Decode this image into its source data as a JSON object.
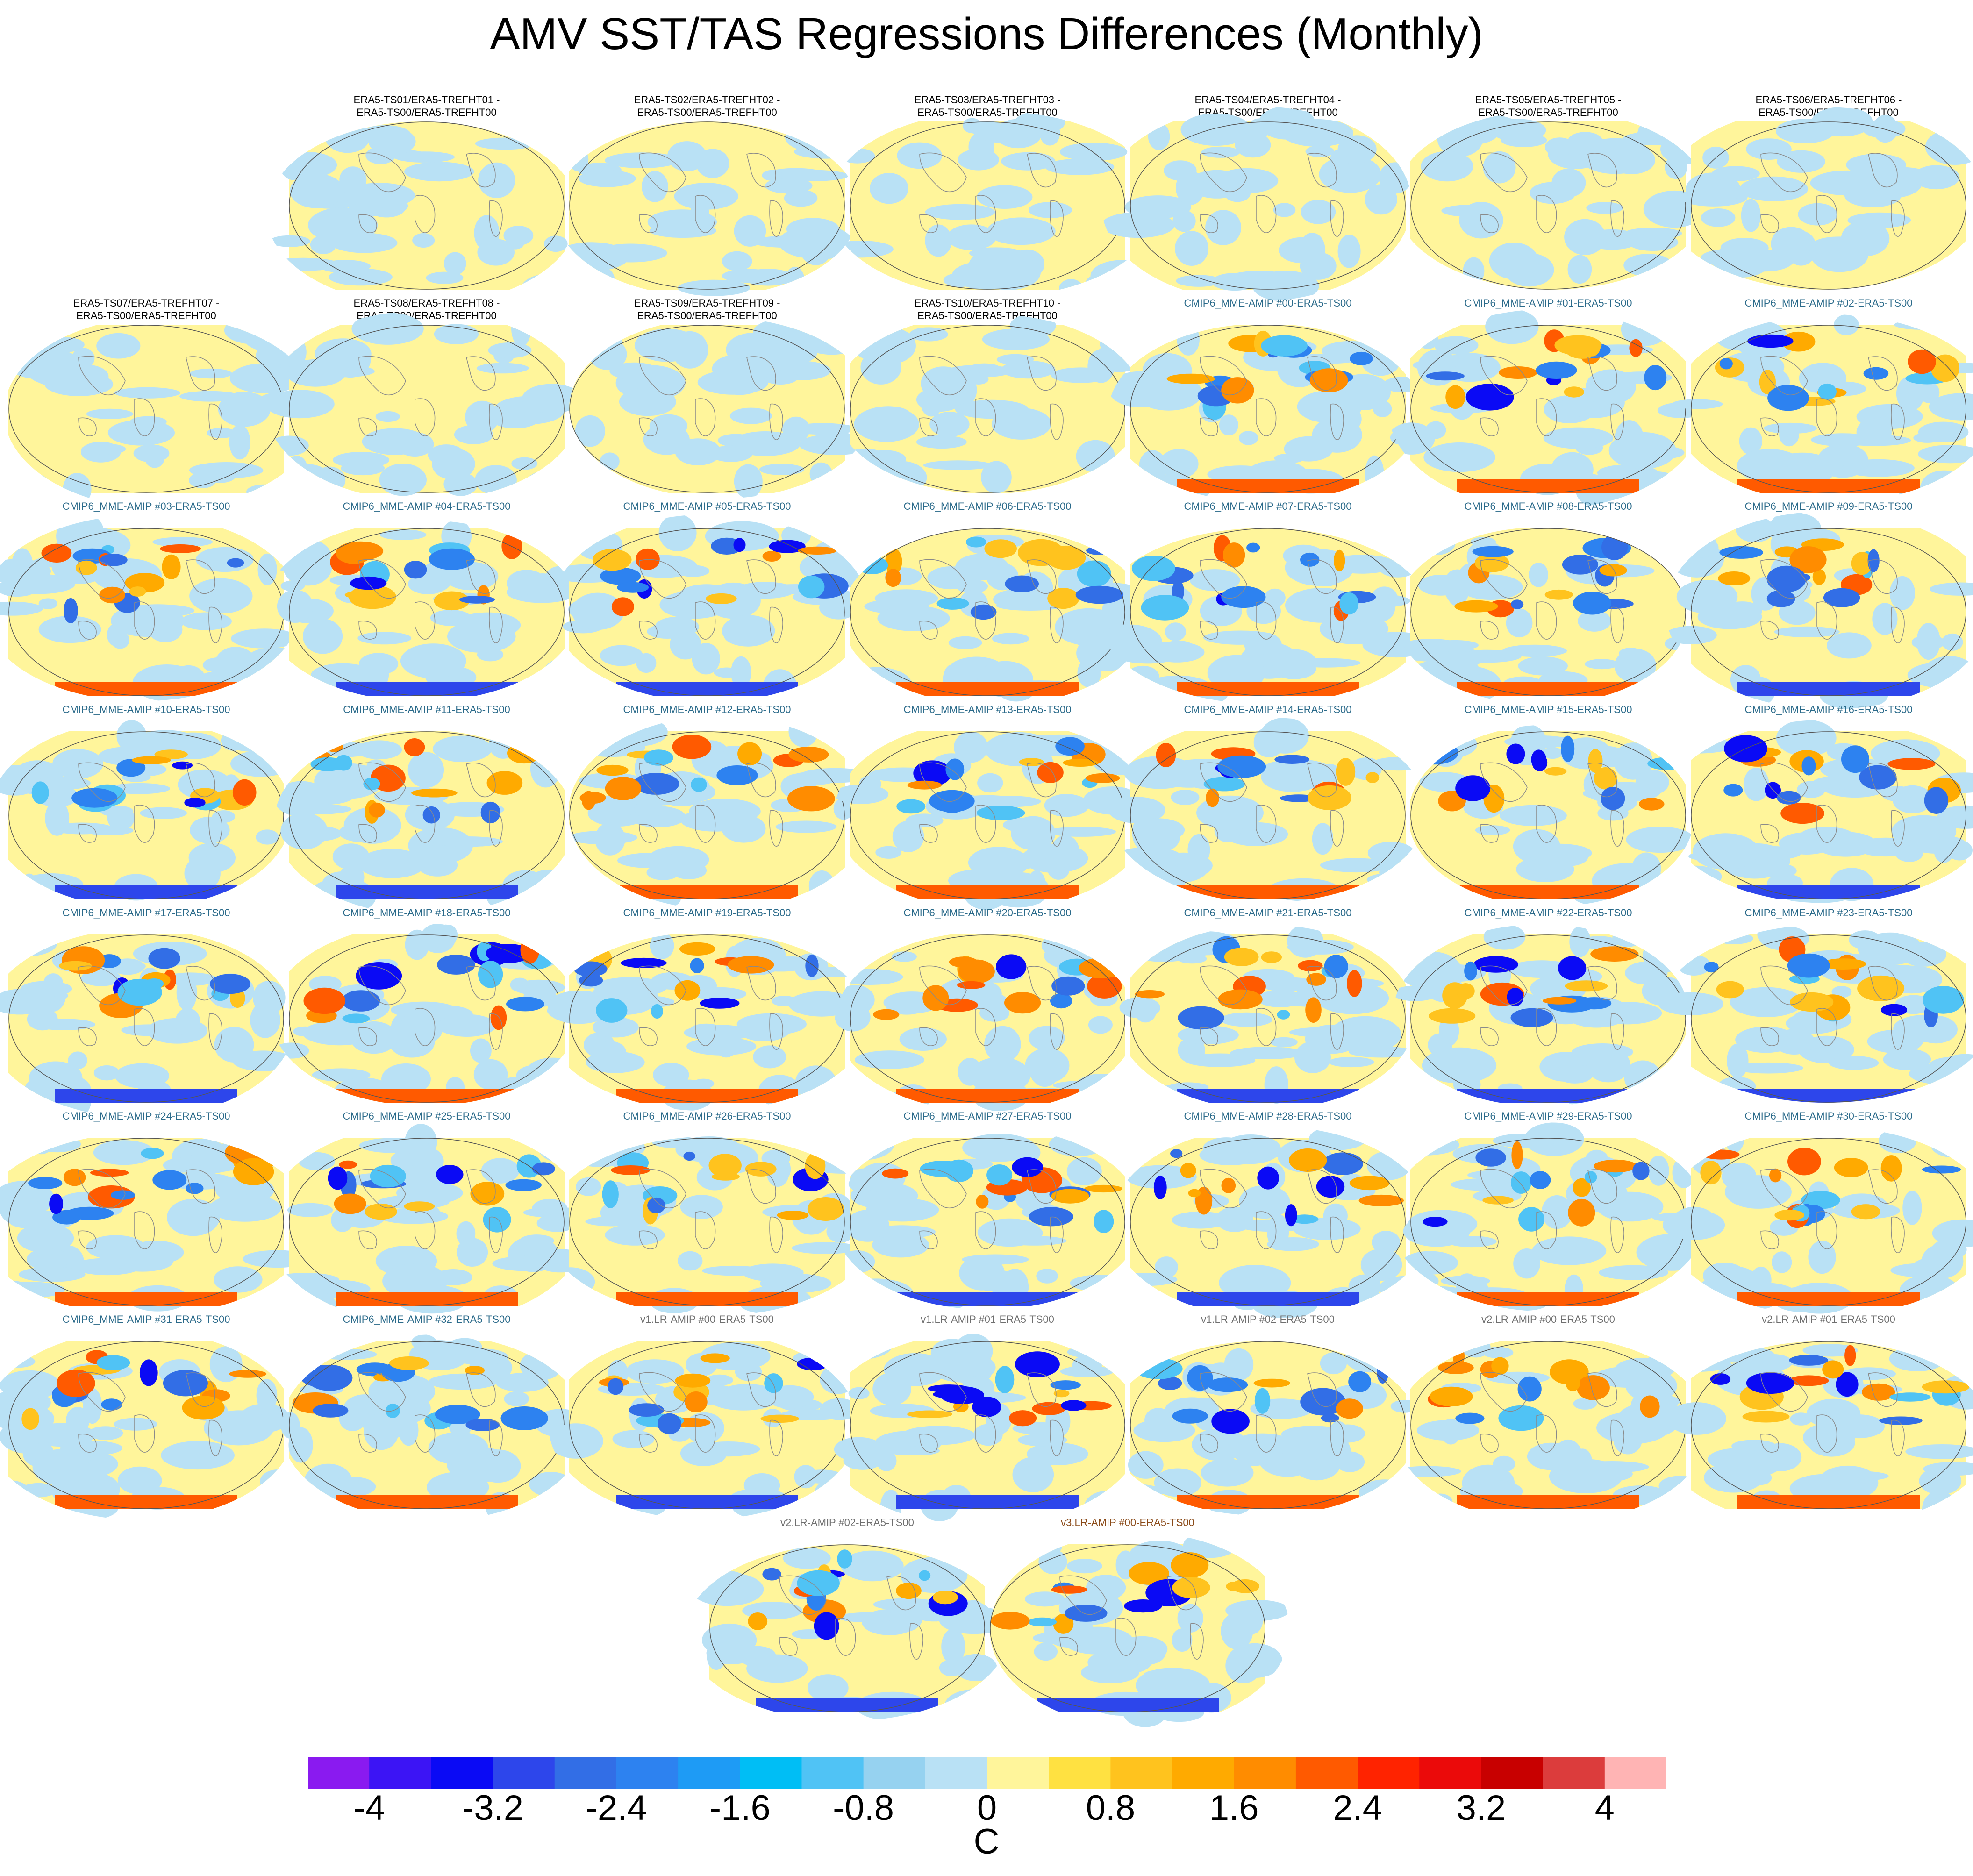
{
  "title": "AMV SST/TAS Regressions Differences (Monthly)",
  "chart_data": {
    "type": "heatmap",
    "title": "AMV SST/TAS Regressions Differences (Monthly)",
    "projection": "global map panels (data fields not numerically recoverable)",
    "panels": [
      {
        "title": "ERA5-TS01/ERA5-TREFHT01 -\nERA5-TS00/ERA5-TREFHT00",
        "group": "era"
      },
      {
        "title": "ERA5-TS02/ERA5-TREFHT02 -\nERA5-TS00/ERA5-TREFHT00",
        "group": "era"
      },
      {
        "title": "ERA5-TS03/ERA5-TREFHT03 -\nERA5-TS00/ERA5-TREFHT00",
        "group": "era"
      },
      {
        "title": "ERA5-TS04/ERA5-TREFHT04 -\nERA5-TS00/ERA5-TREFHT00",
        "group": "era"
      },
      {
        "title": "ERA5-TS05/ERA5-TREFHT05 -\nERA5-TS00/ERA5-TREFHT00",
        "group": "era"
      },
      {
        "title": "ERA5-TS06/ERA5-TREFHT06 -\nERA5-TS00/ERA5-TREFHT00",
        "group": "era"
      },
      {
        "title": "ERA5-TS07/ERA5-TREFHT07 -\nERA5-TS00/ERA5-TREFHT00",
        "group": "era"
      },
      {
        "title": "ERA5-TS08/ERA5-TREFHT08 -\nERA5-TS00/ERA5-TREFHT00",
        "group": "era"
      },
      {
        "title": "ERA5-TS09/ERA5-TREFHT09 -\nERA5-TS00/ERA5-TREFHT00",
        "group": "era"
      },
      {
        "title": "ERA5-TS10/ERA5-TREFHT10 -\nERA5-TS00/ERA5-TREFHT00",
        "group": "era"
      },
      {
        "title": "CMIP6_MME-AMIP  #00-ERA5-TS00",
        "group": "cmip"
      },
      {
        "title": "CMIP6_MME-AMIP  #01-ERA5-TS00",
        "group": "cmip"
      },
      {
        "title": "CMIP6_MME-AMIP  #02-ERA5-TS00",
        "group": "cmip"
      },
      {
        "title": "CMIP6_MME-AMIP  #03-ERA5-TS00",
        "group": "cmip"
      },
      {
        "title": "CMIP6_MME-AMIP  #04-ERA5-TS00",
        "group": "cmip"
      },
      {
        "title": "CMIP6_MME-AMIP  #05-ERA5-TS00",
        "group": "cmip"
      },
      {
        "title": "CMIP6_MME-AMIP  #06-ERA5-TS00",
        "group": "cmip"
      },
      {
        "title": "CMIP6_MME-AMIP  #07-ERA5-TS00",
        "group": "cmip"
      },
      {
        "title": "CMIP6_MME-AMIP  #08-ERA5-TS00",
        "group": "cmip"
      },
      {
        "title": "CMIP6_MME-AMIP  #09-ERA5-TS00",
        "group": "cmip"
      },
      {
        "title": "CMIP6_MME-AMIP  #10-ERA5-TS00",
        "group": "cmip"
      },
      {
        "title": "CMIP6_MME-AMIP  #11-ERA5-TS00",
        "group": "cmip"
      },
      {
        "title": "CMIP6_MME-AMIP  #12-ERA5-TS00",
        "group": "cmip"
      },
      {
        "title": "CMIP6_MME-AMIP  #13-ERA5-TS00",
        "group": "cmip"
      },
      {
        "title": "CMIP6_MME-AMIP  #14-ERA5-TS00",
        "group": "cmip"
      },
      {
        "title": "CMIP6_MME-AMIP  #15-ERA5-TS00",
        "group": "cmip"
      },
      {
        "title": "CMIP6_MME-AMIP  #16-ERA5-TS00",
        "group": "cmip"
      },
      {
        "title": "CMIP6_MME-AMIP  #17-ERA5-TS00",
        "group": "cmip"
      },
      {
        "title": "CMIP6_MME-AMIP  #18-ERA5-TS00",
        "group": "cmip"
      },
      {
        "title": "CMIP6_MME-AMIP  #19-ERA5-TS00",
        "group": "cmip"
      },
      {
        "title": "CMIP6_MME-AMIP  #20-ERA5-TS00",
        "group": "cmip"
      },
      {
        "title": "CMIP6_MME-AMIP  #21-ERA5-TS00",
        "group": "cmip"
      },
      {
        "title": "CMIP6_MME-AMIP  #22-ERA5-TS00",
        "group": "cmip"
      },
      {
        "title": "CMIP6_MME-AMIP  #23-ERA5-TS00",
        "group": "cmip"
      },
      {
        "title": "CMIP6_MME-AMIP  #24-ERA5-TS00",
        "group": "cmip"
      },
      {
        "title": "CMIP6_MME-AMIP  #25-ERA5-TS00",
        "group": "cmip"
      },
      {
        "title": "CMIP6_MME-AMIP  #26-ERA5-TS00",
        "group": "cmip"
      },
      {
        "title": "CMIP6_MME-AMIP  #27-ERA5-TS00",
        "group": "cmip"
      },
      {
        "title": "CMIP6_MME-AMIP  #28-ERA5-TS00",
        "group": "cmip"
      },
      {
        "title": "CMIP6_MME-AMIP  #29-ERA5-TS00",
        "group": "cmip"
      },
      {
        "title": "CMIP6_MME-AMIP  #30-ERA5-TS00",
        "group": "cmip"
      },
      {
        "title": "CMIP6_MME-AMIP  #31-ERA5-TS00",
        "group": "cmip"
      },
      {
        "title": "CMIP6_MME-AMIP  #32-ERA5-TS00",
        "group": "cmip"
      },
      {
        "title": "v1.LR-AMIP  #00-ERA5-TS00",
        "group": "v1"
      },
      {
        "title": "v1.LR-AMIP  #01-ERA5-TS00",
        "group": "v1"
      },
      {
        "title": "v1.LR-AMIP  #02-ERA5-TS00",
        "group": "v1"
      },
      {
        "title": "v2.LR-AMIP  #00-ERA5-TS00",
        "group": "v2"
      },
      {
        "title": "v2.LR-AMIP  #01-ERA5-TS00",
        "group": "v2"
      },
      {
        "title": "v2.LR-AMIP  #02-ERA5-TS00",
        "group": "v2"
      },
      {
        "title": "v3.LR-AMIP  #00-ERA5-TS00",
        "group": "v3"
      }
    ],
    "colorbar": {
      "units": "C",
      "range": [
        -4.4,
        4.4
      ],
      "step": 0.4,
      "tick_labels": [
        "-4",
        "-3.2",
        "-2.4",
        "-1.6",
        "-0.8",
        "0",
        "0.8",
        "1.6",
        "2.4",
        "3.2",
        "4"
      ],
      "tick_values": [
        -4,
        -3.2,
        -2.4,
        -1.6,
        -0.8,
        0,
        0.8,
        1.6,
        2.4,
        3.2,
        4
      ],
      "colors": [
        "#8a1af0",
        "#3c14f5",
        "#0a0af5",
        "#2d46eb",
        "#326ee6",
        "#2d82f0",
        "#1e9bf5",
        "#00bef5",
        "#50c3f5",
        "#96d2f0",
        "#b9e1f5",
        "#fff59b",
        "#ffe141",
        "#ffc31e",
        "#ffaa00",
        "#ff8c00",
        "#ff5a00",
        "#ff2300",
        "#eb0a0a",
        "#c80000",
        "#dc3c3c",
        "#ffb4b4"
      ]
    }
  }
}
